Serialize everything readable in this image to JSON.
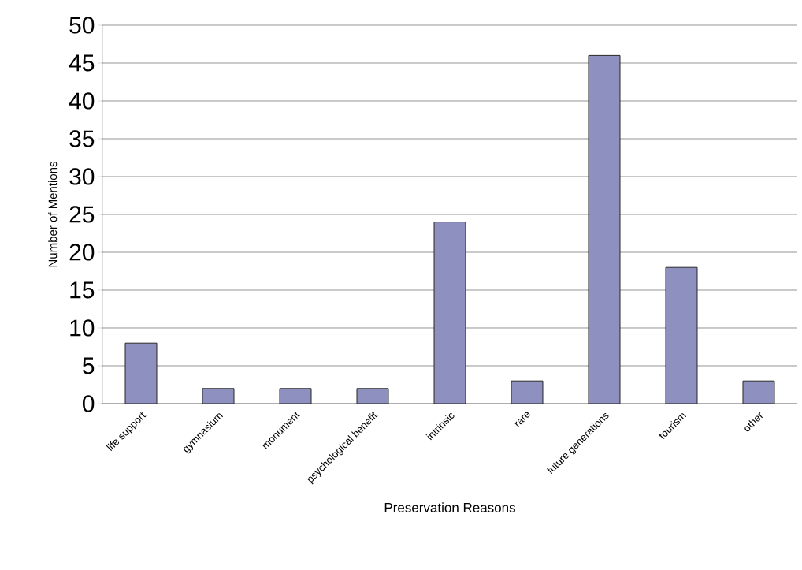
{
  "chart_data": {
    "type": "bar",
    "xlabel": "Preservation Reasons",
    "ylabel": "Number of Mentions",
    "categories": [
      "life support",
      "gymnasium",
      "monument",
      "psychological benefit",
      "intrinsic",
      "rare",
      "future generations",
      "tourism",
      "other"
    ],
    "values": [
      8,
      2,
      2,
      2,
      24,
      3,
      46,
      18,
      3
    ],
    "color": "#8e90c0",
    "ylim": [
      0,
      50
    ],
    "yticks": [
      0,
      5,
      10,
      15,
      20,
      25,
      30,
      35,
      40,
      45,
      50
    ],
    "grid": "y"
  }
}
